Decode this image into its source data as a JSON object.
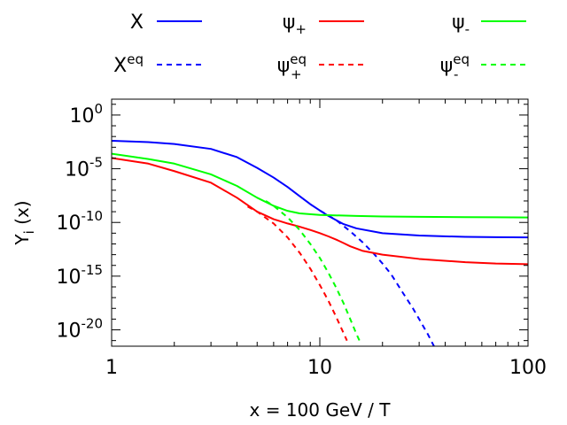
{
  "chart_data": {
    "type": "line",
    "title": "",
    "xlabel": "x = 100 GeV / T",
    "ylabel": "Y",
    "ylabel_subscript": "i",
    "ylabel_suffix": " (x)",
    "xscale": "log",
    "yscale": "log",
    "xlim": [
      1,
      100
    ],
    "ylim": [
      3e-22,
      30.0
    ],
    "x_ticks": [
      {
        "value": 1,
        "label": "1"
      },
      {
        "value": 10,
        "label": "10"
      },
      {
        "value": 100,
        "label": "100"
      }
    ],
    "y_ticks": [
      {
        "value": 1,
        "base": "10",
        "exp": "0"
      },
      {
        "value": 1e-05,
        "base": "10",
        "exp": "-5"
      },
      {
        "value": 1e-10,
        "base": "10",
        "exp": "-10"
      },
      {
        "value": 1e-15,
        "base": "10",
        "exp": "-15"
      },
      {
        "value": 1e-20,
        "base": "10",
        "exp": "-20"
      }
    ],
    "legend_position": "top",
    "series": [
      {
        "name": "X",
        "label_base": "X",
        "label_sub": "",
        "label_sup": "",
        "color": "#0000ff",
        "dash": "solid",
        "points": [
          [
            1,
            0.004
          ],
          [
            1.5,
            0.003
          ],
          [
            2,
            0.002
          ],
          [
            3,
            0.0007
          ],
          [
            4,
            0.00012
          ],
          [
            5,
            1.2e-05
          ],
          [
            6,
            1.5e-06
          ],
          [
            7,
            2e-07
          ],
          [
            8,
            2.8e-08
          ],
          [
            9,
            5e-09
          ],
          [
            10,
            1.3e-09
          ],
          [
            11,
            4e-10
          ],
          [
            12,
            1.6e-10
          ],
          [
            13,
            7e-11
          ],
          [
            15,
            2.8e-11
          ],
          [
            20,
            1e-11
          ],
          [
            30,
            6e-12
          ],
          [
            50,
            4.5e-12
          ],
          [
            70,
            4.2e-12
          ],
          [
            100,
            4e-12
          ]
        ]
      },
      {
        "name": "X eq",
        "label_base": "X",
        "label_sub": "",
        "label_sup": "eq",
        "color": "#0000ff",
        "dash": "dashed",
        "points": [
          [
            10,
            1.3e-09
          ],
          [
            12,
            1.6e-10
          ],
          [
            14,
            1.5e-11
          ],
          [
            16,
            1.5e-12
          ],
          [
            18,
            1.5e-13
          ],
          [
            20,
            1.5e-14
          ],
          [
            22,
            1.5e-15
          ],
          [
            25,
            3e-17
          ],
          [
            28,
            1e-18
          ],
          [
            30,
            1e-19
          ],
          [
            33,
            4e-21
          ],
          [
            36,
            1.5e-22
          ]
        ]
      },
      {
        "name": "ψ+",
        "label_base": "ψ",
        "label_sub": "+",
        "label_sup": "",
        "color": "#ff0000",
        "dash": "solid",
        "points": [
          [
            1,
            0.0001
          ],
          [
            1.5,
            3e-05
          ],
          [
            2,
            6e-06
          ],
          [
            3,
            5e-07
          ],
          [
            4,
            2e-08
          ],
          [
            5,
            1e-09
          ],
          [
            6,
            2e-10
          ],
          [
            7,
            8e-11
          ],
          [
            8,
            4e-11
          ],
          [
            9,
            2e-11
          ],
          [
            10,
            1e-11
          ],
          [
            11,
            5e-12
          ],
          [
            12,
            2.5e-12
          ],
          [
            13,
            1.2e-12
          ],
          [
            14,
            6e-13
          ],
          [
            16,
            2.3e-13
          ],
          [
            20,
            1e-13
          ],
          [
            30,
            4e-14
          ],
          [
            50,
            2e-14
          ],
          [
            70,
            1.5e-14
          ],
          [
            100,
            1.3e-14
          ]
        ]
      },
      {
        "name": "ψ+ eq",
        "label_base": "ψ",
        "label_sub": "+",
        "label_sup": "eq",
        "color": "#ff0000",
        "dash": "dashed",
        "points": [
          [
            4.5,
            3e-09
          ],
          [
            5,
            1e-09
          ],
          [
            6,
            8e-11
          ],
          [
            7,
            4e-12
          ],
          [
            8,
            1.5e-13
          ],
          [
            9,
            5e-15
          ],
          [
            10,
            1.5e-16
          ],
          [
            11,
            5e-18
          ],
          [
            12,
            1.5e-19
          ],
          [
            13,
            5e-21
          ],
          [
            13.5,
            1e-21
          ]
        ]
      },
      {
        "name": "ψ-",
        "label_base": "ψ",
        "label_sub": "-",
        "label_sup": "",
        "color": "#00ff00",
        "dash": "solid",
        "points": [
          [
            1,
            0.00025
          ],
          [
            1.5,
            8e-05
          ],
          [
            2,
            3e-05
          ],
          [
            3,
            3e-06
          ],
          [
            4,
            2.5e-07
          ],
          [
            5,
            2e-08
          ],
          [
            6,
            3.5e-09
          ],
          [
            7,
            1.2e-09
          ],
          [
            8,
            7e-10
          ],
          [
            10,
            5e-10
          ],
          [
            15,
            4e-10
          ],
          [
            20,
            3.6e-10
          ],
          [
            30,
            3.3e-10
          ],
          [
            50,
            3.1e-10
          ],
          [
            70,
            3e-10
          ],
          [
            100,
            2.9e-10
          ]
        ]
      },
      {
        "name": "ψ- eq",
        "label_base": "ψ",
        "label_sub": "-",
        "label_sup": "eq",
        "color": "#00ff00",
        "dash": "dashed",
        "points": [
          [
            5.5,
            1e-08
          ],
          [
            6,
            3.5e-09
          ],
          [
            7,
            3e-10
          ],
          [
            8,
            2e-11
          ],
          [
            9,
            1e-12
          ],
          [
            10,
            5e-14
          ],
          [
            11,
            2e-15
          ],
          [
            12,
            8e-17
          ],
          [
            13,
            3e-18
          ],
          [
            14,
            1e-19
          ],
          [
            15,
            4e-21
          ],
          [
            15.5,
            1e-21
          ]
        ]
      }
    ]
  }
}
